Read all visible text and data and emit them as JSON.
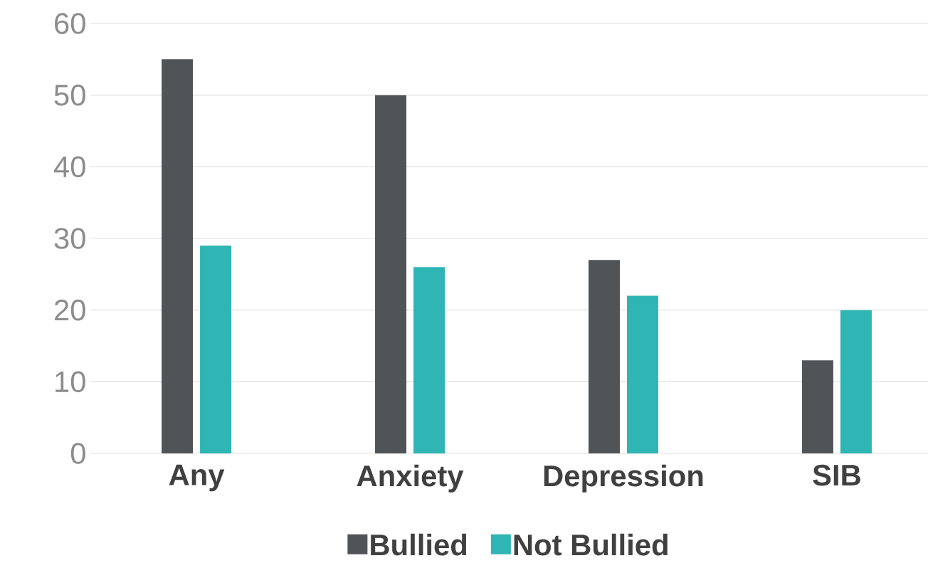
{
  "chart_data": {
    "type": "bar",
    "categories": [
      "Any",
      "Anxiety",
      "Depression",
      "SIB"
    ],
    "series": [
      {
        "name": "Bullied",
        "color": "#515457",
        "values": [
          55,
          50,
          27,
          13
        ]
      },
      {
        "name": "Not Bullied",
        "color": "#2fb5b3",
        "values": [
          29,
          26,
          22,
          20
        ]
      }
    ],
    "ylim": [
      0,
      60
    ],
    "yticks": [
      0,
      10,
      20,
      30,
      40,
      50,
      60
    ],
    "grid": "y",
    "legend": "bottom"
  }
}
